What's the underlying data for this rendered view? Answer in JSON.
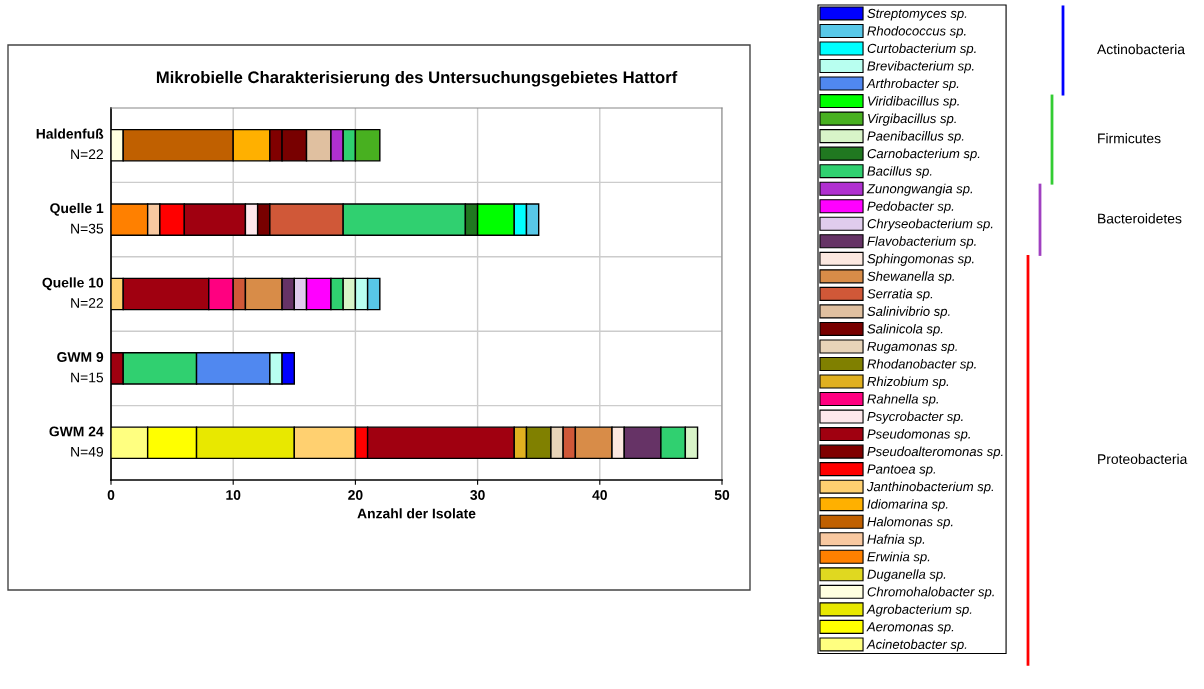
{
  "chart_data": {
    "type": "bar",
    "orientation": "horizontal",
    "stacked": true,
    "title": "Mikrobielle Charakterisierung des Untersuchungsgebietes Hattorf",
    "xlabel": "Anzahl der Isolate",
    "categories": [
      "Haldenfuß\nN=22",
      "Quelle 1\nN=35",
      "Quelle 10\nN=22",
      "GWM 9\nN=15",
      "GWM 24\nN=49"
    ],
    "xlim": [
      0,
      50
    ],
    "xticks": [
      0,
      10,
      20,
      30,
      40,
      50
    ],
    "grid": true,
    "legend": "right",
    "annotations": [
      "Actinobacteria",
      "Firmicutes",
      "Bacteroidetes",
      "Proteobacteria"
    ],
    "series": [
      {
        "name": "Acinetobacter sp.",
        "color": "#ffff80",
        "values": [
          null,
          null,
          null,
          null,
          3
        ]
      },
      {
        "name": "Aeromonas sp.",
        "color": "#ffff00",
        "values": [
          null,
          null,
          null,
          null,
          4
        ]
      },
      {
        "name": "Agrobacterium sp.",
        "color": "#e8e800",
        "values": [
          null,
          null,
          null,
          null,
          8
        ]
      },
      {
        "name": "Chromohalobacter sp.",
        "color": "#ffffe0",
        "values": [
          1,
          null,
          null,
          null,
          null
        ]
      },
      {
        "name": "Duganella sp.",
        "color": "#e0d820",
        "values": [
          null,
          null,
          null,
          null,
          null
        ]
      },
      {
        "name": "Erwinia sp.",
        "color": "#ff8000",
        "values": [
          null,
          3,
          null,
          null,
          null
        ]
      },
      {
        "name": "Hafnia sp.",
        "color": "#f8c8a0",
        "values": [
          null,
          1,
          null,
          null,
          null
        ]
      },
      {
        "name": "Halomonas sp.",
        "color": "#c06000",
        "values": [
          9,
          null,
          null,
          null,
          null
        ]
      },
      {
        "name": "Idiomarina sp.",
        "color": "#ffb000",
        "values": [
          3,
          null,
          null,
          null,
          null
        ]
      },
      {
        "name": "Janthinobacterium sp.",
        "color": "#ffd070",
        "values": [
          null,
          null,
          1,
          null,
          5
        ]
      },
      {
        "name": "Pantoea sp.",
        "color": "#ff0000",
        "values": [
          null,
          2,
          null,
          null,
          1
        ]
      },
      {
        "name": "Pseudoalteromonas sp.",
        "color": "#800000",
        "values": [
          1,
          null,
          null,
          null,
          null
        ]
      },
      {
        "name": "Pseudomonas sp.",
        "color": "#a00010",
        "values": [
          null,
          5,
          7,
          1,
          12
        ]
      },
      {
        "name": "Psycrobacter sp.",
        "color": "#ffe8ec",
        "values": [
          null,
          1,
          null,
          null,
          null
        ]
      },
      {
        "name": "Rahnella sp.",
        "color": "#ff0080",
        "values": [
          null,
          null,
          2,
          null,
          null
        ]
      },
      {
        "name": "Rhizobium sp.",
        "color": "#e0b020",
        "values": [
          null,
          null,
          null,
          null,
          1
        ]
      },
      {
        "name": "Rhodanobacter sp.",
        "color": "#808000",
        "values": [
          null,
          null,
          null,
          null,
          2
        ]
      },
      {
        "name": "Rugamonas sp.",
        "color": "#e8d4b8",
        "values": [
          null,
          null,
          null,
          null,
          1
        ]
      },
      {
        "name": "Salinicola sp.",
        "color": "#780000",
        "values": [
          2,
          1,
          null,
          null,
          null
        ]
      },
      {
        "name": "Salinivibrio sp.",
        "color": "#e0c0a0",
        "values": [
          2,
          null,
          null,
          null,
          null
        ]
      },
      {
        "name": "Serratia sp.",
        "color": "#d05838",
        "values": [
          null,
          6,
          1,
          null,
          1
        ]
      },
      {
        "name": "Shewanella sp.",
        "color": "#d88c48",
        "values": [
          null,
          null,
          3,
          null,
          3
        ]
      },
      {
        "name": "Sphingomonas sp.",
        "color": "#fce8e0",
        "values": [
          null,
          null,
          null,
          null,
          1
        ]
      },
      {
        "name": "Flavobacterium sp.",
        "color": "#663366",
        "values": [
          null,
          null,
          1,
          null,
          3
        ]
      },
      {
        "name": "Chryseobacterium sp.",
        "color": "#e0cced",
        "values": [
          null,
          null,
          1,
          null,
          null
        ]
      },
      {
        "name": "Pedobacter sp.",
        "color": "#ff00ff",
        "values": [
          null,
          null,
          2,
          null,
          null
        ]
      },
      {
        "name": "Zunongwangia sp.",
        "color": "#b030d0",
        "values": [
          1,
          null,
          null,
          null,
          null
        ]
      },
      {
        "name": "Bacillus sp.",
        "color": "#30d070",
        "values": [
          1,
          10,
          1,
          6,
          2
        ]
      },
      {
        "name": "Carnobacterium sp.",
        "color": "#207820",
        "values": [
          null,
          1,
          null,
          null,
          null
        ]
      },
      {
        "name": "Paenibacillus sp.",
        "color": "#d8f4c8",
        "values": [
          null,
          null,
          1,
          null,
          1
        ]
      },
      {
        "name": "Virgibacillus sp.",
        "color": "#48b020",
        "values": [
          2,
          null,
          null,
          null,
          null
        ]
      },
      {
        "name": "Viridibacillus sp.",
        "color": "#00ff00",
        "values": [
          null,
          3,
          null,
          null,
          null
        ]
      },
      {
        "name": "Arthrobacter sp.",
        "color": "#5088f0",
        "values": [
          null,
          null,
          null,
          6,
          null
        ]
      },
      {
        "name": "Brevibacterium sp.",
        "color": "#b8fff0",
        "values": [
          null,
          null,
          1,
          1,
          null
        ]
      },
      {
        "name": "Curtobacterium sp.",
        "color": "#00ffff",
        "values": [
          null,
          1,
          null,
          null,
          null
        ]
      },
      {
        "name": "Rhodococcus sp.",
        "color": "#58c8e8",
        "values": [
          null,
          1,
          1,
          null,
          null
        ]
      },
      {
        "name": "Streptomyces sp.",
        "color": "#0000ff",
        "values": [
          null,
          null,
          null,
          1,
          null
        ]
      }
    ]
  }
}
